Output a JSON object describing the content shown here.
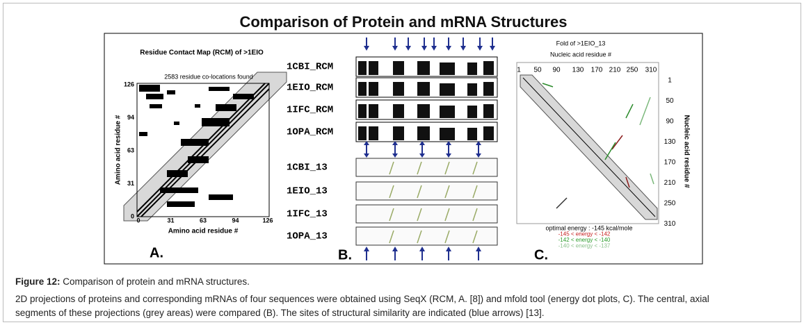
{
  "title": "Comparison of Protein and mRNA Structures",
  "panel_a": {
    "title": "Residue Contact Map (RCM) of >1EIO",
    "note": "2583 residue co-locations found",
    "yticks": [
      "126",
      "94",
      "63",
      "31",
      "0"
    ],
    "xticks": [
      "0",
      "31",
      "63",
      "94",
      "126"
    ],
    "x_label": "Amino acid residue #",
    "y_label": "Amino acid residue #",
    "label": "A."
  },
  "panel_b": {
    "rcm_labels": [
      "1CBI_RCM",
      "1EIO_RCM",
      "1IFC_RCM",
      "1OPA_RCM"
    ],
    "fold_labels": [
      "1CBI_13",
      "1EIO_13",
      "1IFC_13",
      "1OPA_13"
    ],
    "label": "B."
  },
  "panel_c": {
    "title": "Fold of >1EIO_13",
    "x_label": "Nucleic acid residue #",
    "xticks": [
      "1",
      "50",
      "90",
      "130",
      "170",
      "210",
      "250",
      "310"
    ],
    "yticks": [
      "1",
      "50",
      "90",
      "130",
      "170",
      "210",
      "250",
      "310"
    ],
    "y_label": "Nucleic acid residue #",
    "energy_lines": [
      "optimal  energy :  -145 kcal/mole",
      "-145 < energy < -142",
      "-142 < energy < -140",
      "-140 < energy < -137"
    ],
    "label": "C."
  },
  "caption": {
    "label": "Figure 12:",
    "title": "Comparison of protein and mRNA structures.",
    "body": [
      "2D projections of proteins and corresponding mRNAs of four sequences were obtained using SeqX (RCM, A. [8]) and mfold tool (energy dot plots, C). The central, axial",
      "segments of these projections (grey areas) were compared (B). The sites of structural similarity are indicated (blue arrows) [13]."
    ]
  }
}
